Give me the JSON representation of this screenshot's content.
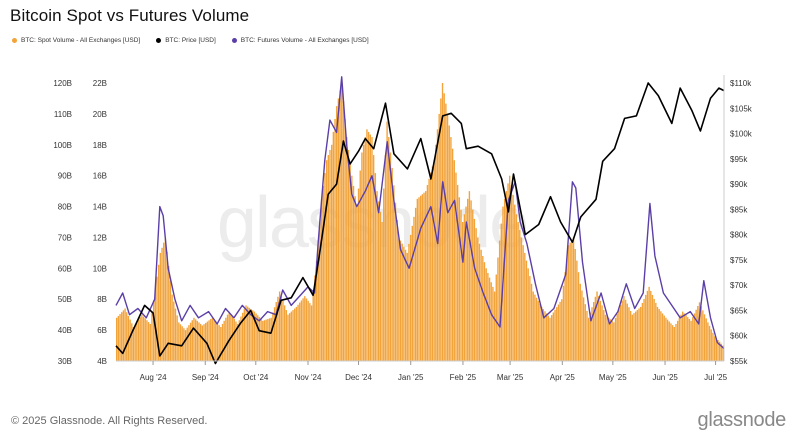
{
  "title": "Bitcoin Spot vs Futures Volume",
  "legend": [
    {
      "label": "BTC: Spot Volume - All Exchanges [USD]",
      "color": "#F2A33A"
    },
    {
      "label": "BTC: Price [USD]",
      "color": "#000000"
    },
    {
      "label": "BTC: Futures Volume - All Exchanges [USD]",
      "color": "#5B3FA8"
    }
  ],
  "watermark": "glassnode",
  "footer": {
    "copyright": "© 2025 Glassnode. All Rights Reserved.",
    "logo": "glassnode"
  },
  "chart_data": {
    "type": "bar",
    "x_start": "2024-07-10",
    "x_end": "2025-07-06",
    "x_ticks": [
      "Aug '24",
      "Sep '24",
      "Oct '24",
      "Nov '24",
      "Dec '24",
      "Jan '25",
      "Feb '25",
      "Mar '25",
      "Apr '25",
      "May '25",
      "Jun '25",
      "Jul '25"
    ],
    "x_tick_dates": [
      "2024-08-01",
      "2024-09-01",
      "2024-10-01",
      "2024-11-01",
      "2024-12-01",
      "2025-01-01",
      "2025-02-01",
      "2025-03-01",
      "2025-04-01",
      "2025-05-01",
      "2025-06-01",
      "2025-07-01"
    ],
    "axes": {
      "futures": {
        "label": "",
        "ticks": [
          "30B",
          "40B",
          "50B",
          "60B",
          "70B",
          "80B",
          "90B",
          "100B",
          "110B",
          "120B"
        ],
        "range": [
          30,
          120
        ]
      },
      "spot": {
        "label": "",
        "ticks": [
          "4B",
          "6B",
          "8B",
          "10B",
          "12B",
          "14B",
          "16B",
          "18B",
          "20B",
          "22B"
        ],
        "range": [
          4,
          22
        ]
      },
      "price": {
        "label": "",
        "ticks": [
          "$55k",
          "$60k",
          "$65k",
          "$70k",
          "$75k",
          "$80k",
          "$85k",
          "$90k",
          "$95k",
          "$100k",
          "$105k",
          "$110k"
        ],
        "range": [
          55,
          110
        ]
      }
    },
    "series": [
      {
        "name": "BTC: Spot Volume - All Exchanges [USD]",
        "type": "bar",
        "axis": "spot",
        "color": "#F2A33A",
        "unit": "B",
        "points": [
          [
            "2024-07-10",
            6.8
          ],
          [
            "2024-07-15",
            7.4
          ],
          [
            "2024-07-20",
            6.2
          ],
          [
            "2024-07-25",
            7.0
          ],
          [
            "2024-07-30",
            6.4
          ],
          [
            "2024-08-05",
            11.0
          ],
          [
            "2024-08-08",
            12.0
          ],
          [
            "2024-08-12",
            8.3
          ],
          [
            "2024-08-16",
            6.5
          ],
          [
            "2024-08-20",
            6.0
          ],
          [
            "2024-08-25",
            6.8
          ],
          [
            "2024-08-30",
            6.3
          ],
          [
            "2024-09-05",
            6.8
          ],
          [
            "2024-09-10",
            6.2
          ],
          [
            "2024-09-15",
            7.2
          ],
          [
            "2024-09-20",
            6.4
          ],
          [
            "2024-09-25",
            7.6
          ],
          [
            "2024-09-30",
            7.2
          ],
          [
            "2024-10-05",
            6.6
          ],
          [
            "2024-10-10",
            6.8
          ],
          [
            "2024-10-15",
            8.5
          ],
          [
            "2024-10-20",
            7.0
          ],
          [
            "2024-10-25",
            7.5
          ],
          [
            "2024-10-30",
            8.2
          ],
          [
            "2024-11-03",
            7.6
          ],
          [
            "2024-11-06",
            10.5
          ],
          [
            "2024-11-09",
            14.5
          ],
          [
            "2024-11-12",
            17.0
          ],
          [
            "2024-11-15",
            18.0
          ],
          [
            "2024-11-18",
            20.5
          ],
          [
            "2024-11-21",
            22.0
          ],
          [
            "2024-11-24",
            18.5
          ],
          [
            "2024-11-27",
            16.0
          ],
          [
            "2024-11-30",
            14.0
          ],
          [
            "2024-12-03",
            17.5
          ],
          [
            "2024-12-06",
            19.0
          ],
          [
            "2024-12-09",
            18.5
          ],
          [
            "2024-12-12",
            15.0
          ],
          [
            "2024-12-15",
            13.0
          ],
          [
            "2024-12-18",
            19.5
          ],
          [
            "2024-12-21",
            16.5
          ],
          [
            "2024-12-25",
            12.0
          ],
          [
            "2024-12-30",
            11.0
          ],
          [
            "2025-01-05",
            14.5
          ],
          [
            "2025-01-10",
            15.0
          ],
          [
            "2025-01-15",
            17.0
          ],
          [
            "2025-01-20",
            22.0
          ],
          [
            "2025-01-23",
            20.0
          ],
          [
            "2025-01-27",
            17.0
          ],
          [
            "2025-02-01",
            13.0
          ],
          [
            "2025-02-05",
            15.0
          ],
          [
            "2025-02-10",
            12.0
          ],
          [
            "2025-02-15",
            10.0
          ],
          [
            "2025-02-20",
            8.5
          ],
          [
            "2025-02-25",
            14.0
          ],
          [
            "2025-03-01",
            16.0
          ],
          [
            "2025-03-05",
            13.5
          ],
          [
            "2025-03-10",
            11.0
          ],
          [
            "2025-03-15",
            8.5
          ],
          [
            "2025-03-20",
            7.5
          ],
          [
            "2025-03-25",
            6.8
          ],
          [
            "2025-04-01",
            8.0
          ],
          [
            "2025-04-05",
            11.5
          ],
          [
            "2025-04-08",
            12.0
          ],
          [
            "2025-04-12",
            9.0
          ],
          [
            "2025-04-17",
            6.8
          ],
          [
            "2025-04-22",
            8.5
          ],
          [
            "2025-04-27",
            7.0
          ],
          [
            "2025-05-02",
            6.5
          ],
          [
            "2025-05-08",
            8.2
          ],
          [
            "2025-05-13",
            7.0
          ],
          [
            "2025-05-18",
            7.5
          ],
          [
            "2025-05-23",
            8.8
          ],
          [
            "2025-05-28",
            7.5
          ],
          [
            "2025-06-02",
            6.8
          ],
          [
            "2025-06-07",
            6.2
          ],
          [
            "2025-06-12",
            7.2
          ],
          [
            "2025-06-17",
            6.6
          ],
          [
            "2025-06-22",
            7.8
          ],
          [
            "2025-06-27",
            6.5
          ],
          [
            "2025-07-01",
            5.6
          ],
          [
            "2025-07-06",
            5.0
          ]
        ]
      },
      {
        "name": "BTC: Price [USD]",
        "type": "line",
        "axis": "price",
        "color": "#000000",
        "unit": "$k",
        "points": [
          [
            "2024-07-10",
            58.0
          ],
          [
            "2024-07-14",
            56.5
          ],
          [
            "2024-07-20",
            61.0
          ],
          [
            "2024-07-27",
            66.0
          ],
          [
            "2024-08-01",
            64.5
          ],
          [
            "2024-08-05",
            56.0
          ],
          [
            "2024-08-10",
            58.5
          ],
          [
            "2024-08-18",
            58.0
          ],
          [
            "2024-08-25",
            61.5
          ],
          [
            "2024-09-02",
            58.5
          ],
          [
            "2024-09-07",
            54.5
          ],
          [
            "2024-09-15",
            59.0
          ],
          [
            "2024-09-22",
            62.5
          ],
          [
            "2024-09-28",
            65.0
          ],
          [
            "2024-10-03",
            61.0
          ],
          [
            "2024-10-10",
            60.5
          ],
          [
            "2024-10-16",
            67.0
          ],
          [
            "2024-10-22",
            67.5
          ],
          [
            "2024-10-29",
            71.5
          ],
          [
            "2024-11-04",
            68.0
          ],
          [
            "2024-11-08",
            76.5
          ],
          [
            "2024-11-13",
            88.0
          ],
          [
            "2024-11-18",
            90.0
          ],
          [
            "2024-11-22",
            98.5
          ],
          [
            "2024-11-26",
            94.0
          ],
          [
            "2024-12-01",
            96.5
          ],
          [
            "2024-12-05",
            99.0
          ],
          [
            "2024-12-10",
            97.0
          ],
          [
            "2024-12-17",
            106.0
          ],
          [
            "2024-12-22",
            96.0
          ],
          [
            "2024-12-30",
            93.0
          ],
          [
            "2025-01-07",
            99.0
          ],
          [
            "2025-01-13",
            91.0
          ],
          [
            "2025-01-20",
            103.5
          ],
          [
            "2025-01-25",
            104.0
          ],
          [
            "2025-01-31",
            102.0
          ],
          [
            "2025-02-03",
            97.0
          ],
          [
            "2025-02-10",
            97.5
          ],
          [
            "2025-02-18",
            96.0
          ],
          [
            "2025-02-24",
            91.0
          ],
          [
            "2025-02-28",
            84.5
          ],
          [
            "2025-03-03",
            92.0
          ],
          [
            "2025-03-10",
            80.0
          ],
          [
            "2025-03-18",
            82.0
          ],
          [
            "2025-03-25",
            87.5
          ],
          [
            "2025-03-31",
            82.5
          ],
          [
            "2025-04-07",
            78.5
          ],
          [
            "2025-04-12",
            83.5
          ],
          [
            "2025-04-21",
            87.0
          ],
          [
            "2025-04-25",
            94.5
          ],
          [
            "2025-05-02",
            97.0
          ],
          [
            "2025-05-08",
            103.0
          ],
          [
            "2025-05-15",
            103.5
          ],
          [
            "2025-05-22",
            110.0
          ],
          [
            "2025-05-28",
            107.5
          ],
          [
            "2025-06-05",
            102.0
          ],
          [
            "2025-06-10",
            109.0
          ],
          [
            "2025-06-17",
            104.5
          ],
          [
            "2025-06-22",
            100.5
          ],
          [
            "2025-06-28",
            107.0
          ],
          [
            "2025-07-03",
            109.0
          ],
          [
            "2025-07-06",
            108.5
          ]
        ]
      },
      {
        "name": "BTC: Futures Volume - All Exchanges [USD]",
        "type": "line",
        "axis": "futures",
        "color": "#5B3FA8",
        "unit": "B",
        "points": [
          [
            "2024-07-10",
            48.0
          ],
          [
            "2024-07-14",
            52.0
          ],
          [
            "2024-07-18",
            45.0
          ],
          [
            "2024-07-23",
            47.0
          ],
          [
            "2024-07-28",
            44.0
          ],
          [
            "2024-08-02",
            50.0
          ],
          [
            "2024-08-05",
            80.0
          ],
          [
            "2024-08-07",
            77.0
          ],
          [
            "2024-08-10",
            60.0
          ],
          [
            "2024-08-14",
            50.0
          ],
          [
            "2024-08-18",
            43.0
          ],
          [
            "2024-08-23",
            48.0
          ],
          [
            "2024-08-28",
            44.0
          ],
          [
            "2024-09-03",
            46.0
          ],
          [
            "2024-09-08",
            42.0
          ],
          [
            "2024-09-13",
            47.0
          ],
          [
            "2024-09-18",
            44.0
          ],
          [
            "2024-09-23",
            48.0
          ],
          [
            "2024-09-28",
            45.0
          ],
          [
            "2024-10-03",
            43.0
          ],
          [
            "2024-10-08",
            46.0
          ],
          [
            "2024-10-13",
            45.0
          ],
          [
            "2024-10-17",
            53.0
          ],
          [
            "2024-10-22",
            48.0
          ],
          [
            "2024-10-27",
            51.0
          ],
          [
            "2024-11-01",
            54.0
          ],
          [
            "2024-11-05",
            52.0
          ],
          [
            "2024-11-07",
            68.0
          ],
          [
            "2024-11-11",
            95.0
          ],
          [
            "2024-11-14",
            108.0
          ],
          [
            "2024-11-18",
            104.0
          ],
          [
            "2024-11-21",
            122.0
          ],
          [
            "2024-11-24",
            100.0
          ],
          [
            "2024-11-27",
            84.0
          ],
          [
            "2024-11-30",
            80.0
          ],
          [
            "2024-12-05",
            85.0
          ],
          [
            "2024-12-09",
            90.0
          ],
          [
            "2024-12-13",
            78.0
          ],
          [
            "2024-12-18",
            101.0
          ],
          [
            "2024-12-22",
            82.0
          ],
          [
            "2024-12-26",
            66.0
          ],
          [
            "2024-12-31",
            60.0
          ],
          [
            "2025-01-07",
            73.0
          ],
          [
            "2025-01-13",
            80.0
          ],
          [
            "2025-01-17",
            68.0
          ],
          [
            "2025-01-20",
            88.0
          ],
          [
            "2025-01-23",
            78.0
          ],
          [
            "2025-01-27",
            82.0
          ],
          [
            "2025-02-01",
            62.0
          ],
          [
            "2025-02-03",
            75.0
          ],
          [
            "2025-02-08",
            60.0
          ],
          [
            "2025-02-13",
            52.0
          ],
          [
            "2025-02-18",
            45.0
          ],
          [
            "2025-02-23",
            41.0
          ],
          [
            "2025-02-28",
            82.0
          ],
          [
            "2025-03-04",
            88.0
          ],
          [
            "2025-03-07",
            75.0
          ],
          [
            "2025-03-11",
            68.0
          ],
          [
            "2025-03-16",
            55.0
          ],
          [
            "2025-03-21",
            44.0
          ],
          [
            "2025-03-27",
            47.0
          ],
          [
            "2025-04-03",
            58.0
          ],
          [
            "2025-04-07",
            88.0
          ],
          [
            "2025-04-09",
            86.0
          ],
          [
            "2025-04-13",
            62.0
          ],
          [
            "2025-04-18",
            43.0
          ],
          [
            "2025-04-24",
            52.0
          ],
          [
            "2025-04-29",
            42.0
          ],
          [
            "2025-05-04",
            46.0
          ],
          [
            "2025-05-09",
            55.0
          ],
          [
            "2025-05-14",
            47.0
          ],
          [
            "2025-05-19",
            52.0
          ],
          [
            "2025-05-23",
            81.0
          ],
          [
            "2025-05-26",
            64.0
          ],
          [
            "2025-05-31",
            52.0
          ],
          [
            "2025-06-05",
            48.0
          ],
          [
            "2025-06-10",
            44.0
          ],
          [
            "2025-06-16",
            46.0
          ],
          [
            "2025-06-21",
            42.0
          ],
          [
            "2025-06-24",
            56.0
          ],
          [
            "2025-06-28",
            44.0
          ],
          [
            "2025-07-02",
            36.0
          ],
          [
            "2025-07-06",
            34.0
          ]
        ]
      }
    ]
  }
}
